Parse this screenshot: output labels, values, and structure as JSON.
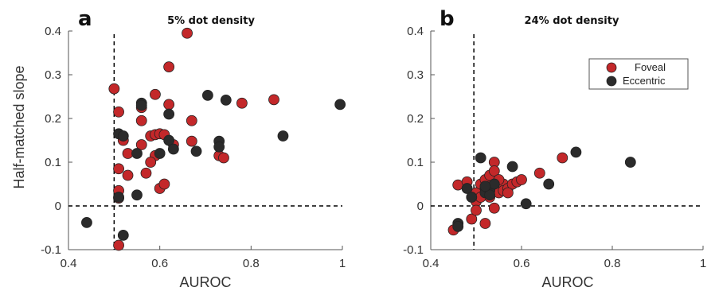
{
  "colors": {
    "foveal": "#c3282a",
    "eccentric": "#2b2b2b",
    "axis": "#555555",
    "dash": "#000000"
  },
  "ylabel": "Half-matched slope",
  "chart_data": [
    {
      "type": "scatter",
      "letter": "a",
      "title": "5% dot density",
      "xlabel": "AUROC",
      "xlim": [
        0.4,
        1.0
      ],
      "ylim": [
        -0.1,
        0.4
      ],
      "xticks": [
        "0.4",
        "0.6",
        "0.8",
        "1"
      ],
      "xtick_values": [
        0.4,
        0.6,
        0.8,
        1.0
      ],
      "yticks": [
        "-0.1",
        "0",
        "0.1",
        "0.2",
        "0.3",
        "0.4"
      ],
      "ytick_values": [
        -0.1,
        0.0,
        0.1,
        0.2,
        0.3,
        0.4
      ],
      "ref_x": 0.5,
      "ref_y": 0.0,
      "series": [
        {
          "name": "Foveal",
          "color_key": "foveal",
          "points": [
            [
              0.66,
              0.395
            ],
            [
              0.62,
              0.318
            ],
            [
              0.5,
              0.268
            ],
            [
              0.59,
              0.255
            ],
            [
              0.62,
              0.232
            ],
            [
              0.51,
              0.215
            ],
            [
              0.56,
              0.225
            ],
            [
              0.56,
              0.195
            ],
            [
              0.67,
              0.195
            ],
            [
              0.78,
              0.235
            ],
            [
              0.85,
              0.243
            ],
            [
              0.58,
              0.16
            ],
            [
              0.59,
              0.163
            ],
            [
              0.6,
              0.165
            ],
            [
              0.61,
              0.163
            ],
            [
              0.52,
              0.15
            ],
            [
              0.56,
              0.14
            ],
            [
              0.63,
              0.14
            ],
            [
              0.67,
              0.148
            ],
            [
              0.53,
              0.12
            ],
            [
              0.59,
              0.115
            ],
            [
              0.58,
              0.1
            ],
            [
              0.57,
              0.075
            ],
            [
              0.53,
              0.07
            ],
            [
              0.51,
              0.085
            ],
            [
              0.6,
              0.04
            ],
            [
              0.61,
              0.05
            ],
            [
              0.51,
              0.035
            ],
            [
              0.51,
              0.018
            ],
            [
              0.51,
              -0.09
            ],
            [
              0.73,
              0.115
            ],
            [
              0.74,
              0.11
            ]
          ]
        },
        {
          "name": "Eccentric",
          "color_key": "eccentric",
          "points": [
            [
              0.44,
              -0.038
            ],
            [
              0.52,
              -0.067
            ],
            [
              0.51,
              0.165
            ],
            [
              0.52,
              0.16
            ],
            [
              0.55,
              0.12
            ],
            [
              0.56,
              0.235
            ],
            [
              0.56,
              0.23
            ],
            [
              0.55,
              0.025
            ],
            [
              0.62,
              0.21
            ],
            [
              0.62,
              0.15
            ],
            [
              0.63,
              0.13
            ],
            [
              0.6,
              0.12
            ],
            [
              0.68,
              0.125
            ],
            [
              0.705,
              0.253
            ],
            [
              0.745,
              0.242
            ],
            [
              0.73,
              0.148
            ],
            [
              0.73,
              0.135
            ],
            [
              0.87,
              0.16
            ],
            [
              0.995,
              0.232
            ],
            [
              0.51,
              0.02
            ]
          ]
        }
      ]
    },
    {
      "type": "scatter",
      "letter": "b",
      "title": "24% dot density",
      "xlabel": "AUROC",
      "xlim": [
        0.4,
        1.0
      ],
      "ylim": [
        -0.1,
        0.4
      ],
      "xticks": [
        "0.4",
        "0.6",
        "0.8",
        "1"
      ],
      "xtick_values": [
        0.4,
        0.6,
        0.8,
        1.0
      ],
      "yticks": [
        "-0.1",
        "0",
        "0.1",
        "0.2",
        "0.3",
        "0.4"
      ],
      "ytick_values": [
        -0.1,
        0.0,
        0.1,
        0.2,
        0.3,
        0.4
      ],
      "ref_x": 0.495,
      "ref_y": 0.0,
      "legend": {
        "position": "top-right",
        "entries": [
          "Foveal",
          "Eccentric"
        ]
      },
      "series": [
        {
          "name": "Foveal",
          "color_key": "foveal",
          "points": [
            [
              0.45,
              -0.055
            ],
            [
              0.46,
              0.048
            ],
            [
              0.48,
              0.055
            ],
            [
              0.49,
              -0.03
            ],
            [
              0.5,
              0.03
            ],
            [
              0.5,
              0.01
            ],
            [
              0.51,
              0.05
            ],
            [
              0.52,
              0.06
            ],
            [
              0.52,
              -0.04
            ],
            [
              0.53,
              0.07
            ],
            [
              0.53,
              0.02
            ],
            [
              0.54,
              0.1
            ],
            [
              0.54,
              0.08
            ],
            [
              0.54,
              -0.005
            ],
            [
              0.55,
              0.03
            ],
            [
              0.56,
              0.05
            ],
            [
              0.56,
              0.035
            ],
            [
              0.57,
              0.04
            ],
            [
              0.58,
              0.05
            ],
            [
              0.59,
              0.055
            ],
            [
              0.6,
              0.06
            ],
            [
              0.64,
              0.075
            ],
            [
              0.69,
              0.11
            ],
            [
              0.5,
              -0.01
            ],
            [
              0.53,
              0.045
            ],
            [
              0.51,
              0.02
            ],
            [
              0.55,
              0.06
            ],
            [
              0.57,
              0.03
            ]
          ]
        },
        {
          "name": "Eccentric",
          "color_key": "eccentric",
          "points": [
            [
              0.46,
              -0.04
            ],
            [
              0.46,
              -0.047
            ],
            [
              0.48,
              0.04
            ],
            [
              0.49,
              0.02
            ],
            [
              0.51,
              0.11
            ],
            [
              0.52,
              0.04
            ],
            [
              0.52,
              0.03
            ],
            [
              0.53,
              0.035
            ],
            [
              0.54,
              0.05
            ],
            [
              0.58,
              0.09
            ],
            [
              0.61,
              0.005
            ],
            [
              0.66,
              0.05
            ],
            [
              0.72,
              0.123
            ],
            [
              0.84,
              0.1
            ],
            [
              0.53,
              0.025
            ],
            [
              0.52,
              0.045
            ]
          ]
        }
      ]
    }
  ]
}
